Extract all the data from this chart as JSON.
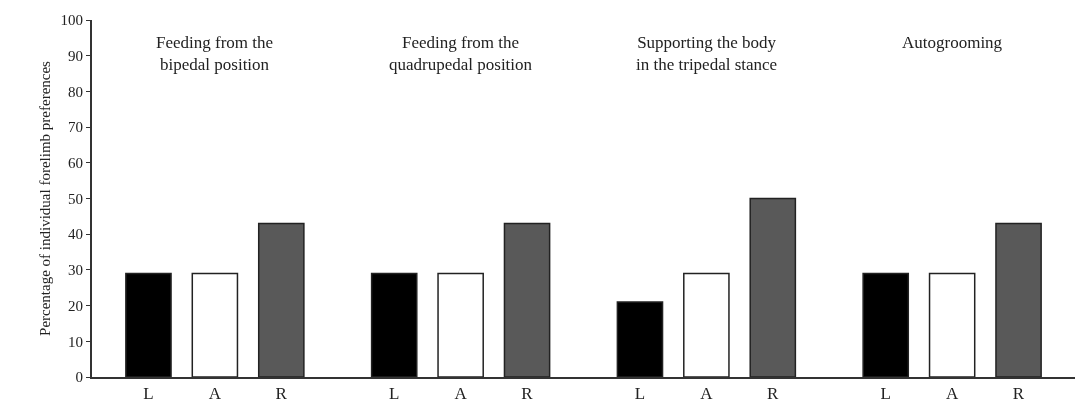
{
  "chart_data": [
    {
      "type": "bar",
      "title": "Feeding from the\nbipedal position",
      "ylabel": "Percentage of individual forelimb preferences",
      "categories": [
        "L",
        "A",
        "R"
      ],
      "values": [
        29,
        29,
        43
      ],
      "colors": [
        "#000000",
        "#ffffff",
        "#595959"
      ],
      "ylim": [
        0,
        100
      ],
      "yticks": [
        0,
        10,
        20,
        30,
        40,
        50,
        60,
        70,
        80,
        90,
        100
      ],
      "grid": false,
      "legend": false
    },
    {
      "type": "bar",
      "title": "Feeding from the\nquadrupedal position",
      "categories": [
        "L",
        "A",
        "R"
      ],
      "values": [
        29,
        29,
        43
      ],
      "colors": [
        "#000000",
        "#ffffff",
        "#595959"
      ],
      "ylim": [
        0,
        100
      ],
      "tick_labels": "x",
      "grid": false,
      "legend": false
    },
    {
      "type": "bar",
      "title": "Supporting the body\nin the tripedal stance",
      "categories": [
        "L",
        "A",
        "R"
      ],
      "values": [
        21,
        29,
        50
      ],
      "colors": [
        "#000000",
        "#ffffff",
        "#595959"
      ],
      "ylim": [
        0,
        100
      ],
      "tick_labels": "x",
      "grid": false,
      "legend": false
    },
    {
      "type": "bar",
      "title": "Autogrooming",
      "categories": [
        "L",
        "A",
        "R"
      ],
      "values": [
        29,
        29,
        43
      ],
      "colors": [
        "#000000",
        "#ffffff",
        "#595959"
      ],
      "ylim": [
        0,
        100
      ],
      "tick_labels": "x",
      "grid": false,
      "legend": false
    }
  ]
}
